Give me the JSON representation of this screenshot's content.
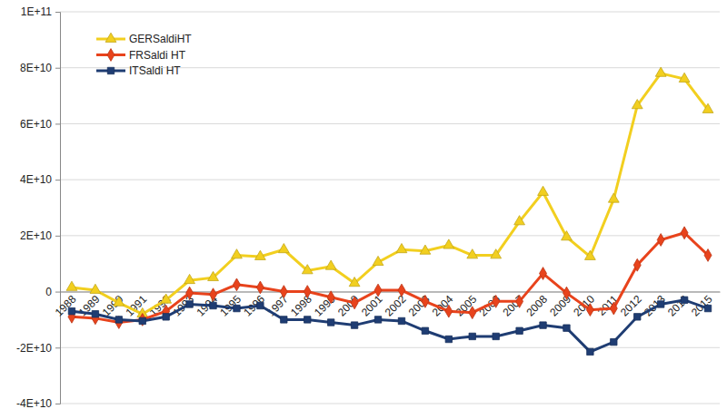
{
  "chart_data": {
    "type": "line",
    "categories": [
      "1988",
      "1989",
      "1990",
      "1991",
      "1992",
      "1993",
      "1994",
      "1995",
      "1996",
      "1997",
      "1998",
      "1999",
      "2000",
      "2001",
      "2002",
      "2003",
      "2004",
      "2005",
      "2006",
      "2007",
      "2008",
      "2009",
      "2010",
      "2011",
      "2012",
      "2013",
      "2014",
      "2015"
    ],
    "series": [
      {
        "name": "GERSaldiHT",
        "color": "#f2cf1f",
        "marker": "triangle",
        "values": [
          1500000000,
          500000000,
          -4000000000,
          -8000000000,
          -3000000000,
          4000000000,
          5000000000,
          13000000000,
          12500000000,
          15000000000,
          7500000000,
          9000000000,
          3000000000,
          10500000000,
          15000000000,
          14500000000,
          16500000000,
          13000000000,
          13000000000,
          25000000000,
          35500000000,
          19500000000,
          12500000000,
          33000000000,
          66500000000,
          78000000000,
          76000000000,
          65000000000
        ]
      },
      {
        "name": "FRSaldi HT",
        "color": "#e8431c",
        "marker": "diamond",
        "values": [
          -9000000000,
          -9500000000,
          -11000000000,
          -10000000000,
          -7000000000,
          -500000000,
          -1000000000,
          2500000000,
          1500000000,
          0,
          0,
          -2000000000,
          -4000000000,
          500000000,
          500000000,
          -3500000000,
          -7000000000,
          -7500000000,
          -3500000000,
          -3500000000,
          6500000000,
          -500000000,
          -6500000000,
          -6000000000,
          9500000000,
          18500000000,
          21000000000,
          13000000000
        ]
      },
      {
        "name": "ITSaldi HT",
        "color": "#1f3d73",
        "marker": "square",
        "values": [
          -7000000000,
          -8000000000,
          -10000000000,
          -10500000000,
          -9000000000,
          -4500000000,
          -5000000000,
          -6000000000,
          -5000000000,
          -10000000000,
          -10000000000,
          -11000000000,
          -12000000000,
          -10000000000,
          -10500000000,
          -14000000000,
          -17000000000,
          -16000000000,
          -16000000000,
          -14000000000,
          -12000000000,
          -13000000000,
          -21500000000,
          -18000000000,
          -9000000000,
          -4500000000,
          -3000000000,
          -6000000000
        ]
      }
    ],
    "ylim": [
      -40000000000,
      100000000000
    ],
    "yticks": [
      {
        "value": -40000000000,
        "label": "-4E+10"
      },
      {
        "value": -20000000000,
        "label": "-2E+10"
      },
      0,
      {
        "value": 20000000000,
        "label": "2E+10"
      },
      {
        "value": 40000000000,
        "label": "4E+10"
      },
      {
        "value": 60000000000,
        "label": "6E+10"
      },
      {
        "value": 80000000000,
        "label": "8E+10"
      },
      {
        "value": 100000000000,
        "label": "1E+11"
      }
    ],
    "grid": true,
    "legend": "top-left"
  }
}
